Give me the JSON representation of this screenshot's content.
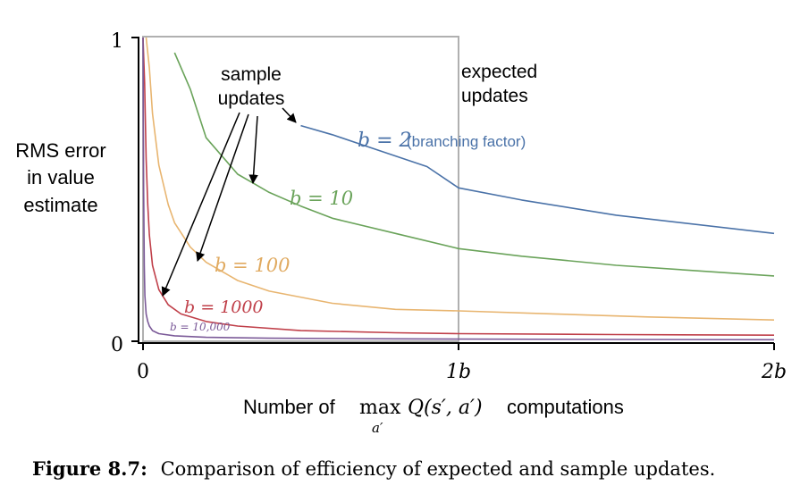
{
  "chart_data": {
    "type": "line",
    "title": "",
    "ylabel": [
      "RMS error",
      "in value",
      "estimate"
    ],
    "xlabel": {
      "prefix": "Number of",
      "max_op": "max",
      "max_sub": "a′",
      "expr": "Q(s′, a′)",
      "suffix": "computations"
    },
    "x_ticks": [
      "0",
      "1b",
      "2b"
    ],
    "y_ticks": [
      "0",
      "1"
    ],
    "xlim": [
      0,
      2
    ],
    "ylim": [
      0,
      1
    ],
    "x_unit": "b",
    "annotations": {
      "sample_updates": [
        "sample",
        "updates"
      ],
      "expected_updates": [
        "expected",
        "updates"
      ],
      "branching_factor_note": "(branching factor)"
    },
    "series": [
      {
        "name": "b=2",
        "label": "b = 2",
        "color": "#4a72a8",
        "x": [
          0.5,
          0.6,
          0.7,
          0.8,
          0.9,
          1.0,
          1.2,
          1.5,
          2.0
        ],
        "y": [
          0.71,
          0.68,
          0.645,
          0.61,
          0.575,
          0.505,
          0.465,
          0.415,
          0.355
        ]
      },
      {
        "name": "b=10",
        "label": "b = 10",
        "color": "#6aa35a",
        "x": [
          0.1,
          0.15,
          0.2,
          0.3,
          0.35,
          0.4,
          0.5,
          0.6,
          0.8,
          1.0,
          1.2,
          1.5,
          2.0
        ],
        "y": [
          0.95,
          0.83,
          0.67,
          0.55,
          0.52,
          0.49,
          0.445,
          0.405,
          0.355,
          0.305,
          0.28,
          0.25,
          0.215
        ]
      },
      {
        "name": "b=100",
        "label": "b = 100",
        "color": "#e8b570",
        "x": [
          0.01,
          0.02,
          0.03,
          0.05,
          0.08,
          0.1,
          0.15,
          0.2,
          0.3,
          0.4,
          0.6,
          0.8,
          1.0,
          1.3,
          1.6,
          2.0
        ],
        "y": [
          1.0,
          0.9,
          0.75,
          0.58,
          0.45,
          0.39,
          0.31,
          0.26,
          0.2,
          0.165,
          0.125,
          0.105,
          0.1,
          0.09,
          0.08,
          0.07
        ]
      },
      {
        "name": "b=1000",
        "label": "b = 1000",
        "color": "#c0404a",
        "x": [
          0.0,
          0.005,
          0.01,
          0.015,
          0.02,
          0.03,
          0.05,
          0.08,
          0.12,
          0.2,
          0.3,
          0.5,
          0.8,
          1.0,
          1.5,
          2.0
        ],
        "y": [
          1.0,
          0.85,
          0.6,
          0.45,
          0.35,
          0.25,
          0.17,
          0.12,
          0.09,
          0.065,
          0.05,
          0.035,
          0.028,
          0.025,
          0.022,
          0.02
        ]
      },
      {
        "name": "b=10,000",
        "label": "b = 10,000",
        "color": "#7b5a98",
        "x": [
          0.0,
          0.002,
          0.004,
          0.006,
          0.01,
          0.015,
          0.02,
          0.03,
          0.05,
          0.1,
          0.2,
          0.4,
          0.8,
          1.0,
          1.5,
          2.0
        ],
        "y": [
          1.0,
          0.5,
          0.25,
          0.15,
          0.09,
          0.065,
          0.05,
          0.035,
          0.025,
          0.018,
          0.013,
          0.01,
          0.008,
          0.007,
          0.006,
          0.005
        ]
      }
    ],
    "expected_box_color": "#b0b0b0"
  },
  "caption": {
    "label": "Figure 8.7:",
    "text": "Comparison of efficiency of expected and sample updates."
  }
}
